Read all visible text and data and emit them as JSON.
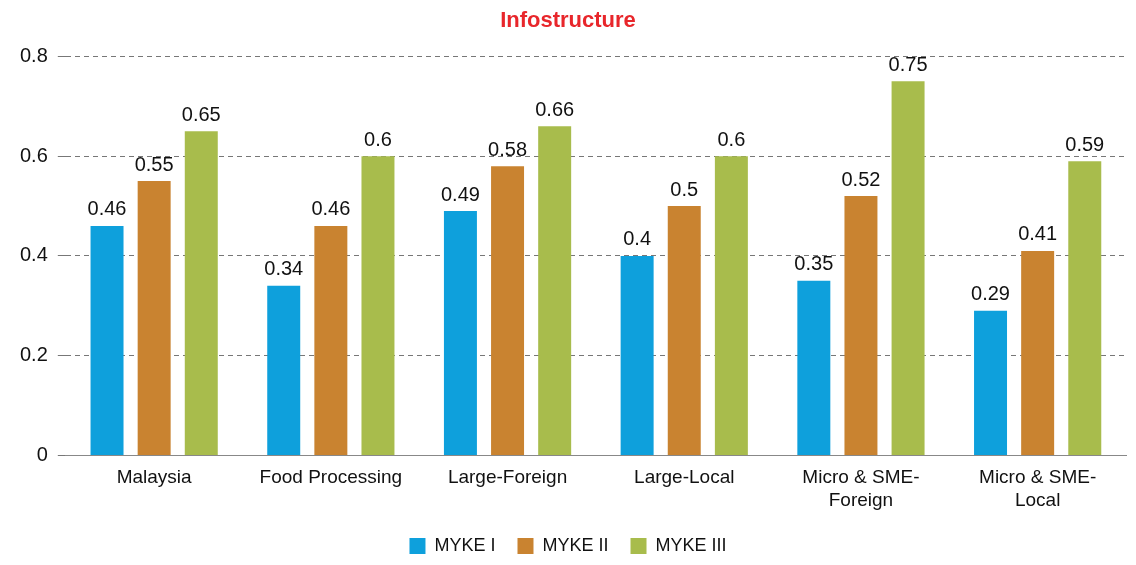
{
  "chart_data": {
    "type": "bar",
    "title": "Infostructure",
    "categories": [
      "Malaysia",
      "Food Processing",
      "Large-Foreign",
      "Large-Local",
      "Micro & SME-Foreign",
      "Micro & SME-Local"
    ],
    "series": [
      {
        "name": "MYKE I",
        "color": "#0ea0dc",
        "values": [
          0.46,
          0.34,
          0.49,
          0.4,
          0.35,
          0.29
        ]
      },
      {
        "name": "MYKE II",
        "color": "#c98330",
        "values": [
          0.55,
          0.46,
          0.58,
          0.5,
          0.52,
          0.41
        ]
      },
      {
        "name": "MYKE III",
        "color": "#a8bc4c",
        "values": [
          0.65,
          0.6,
          0.66,
          0.6,
          0.75,
          0.59
        ]
      }
    ],
    "ylim": [
      0,
      0.8
    ],
    "yticks": [
      0,
      0.2,
      0.4,
      0.6,
      0.8
    ],
    "grid": "y",
    "legend": "bottom",
    "data_labels": true
  }
}
